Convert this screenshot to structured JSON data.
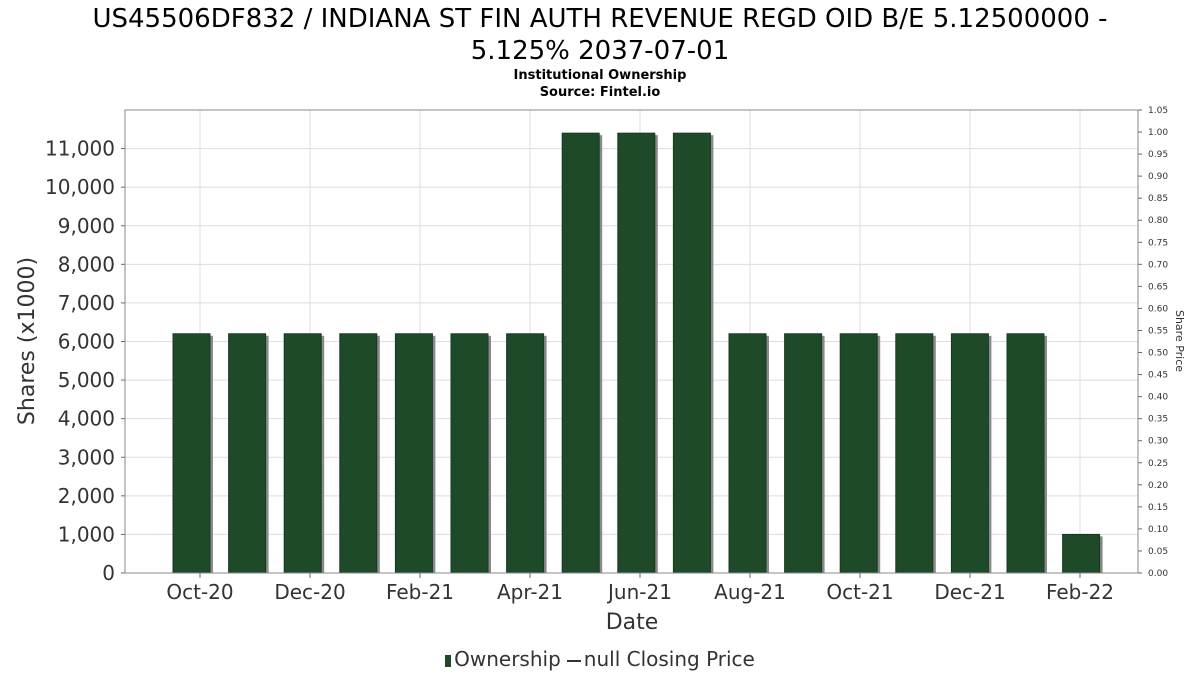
{
  "header": {
    "title_line1": "US45506DF832 / INDIANA ST FIN AUTH REVENUE REGD OID B/E 5.12500000 -",
    "title_line2": "5.125% 2037-07-01",
    "subtitle": "Institutional Ownership",
    "source": "Source: Fintel.io"
  },
  "legend": {
    "ownership": "Ownership",
    "closing_price": "null Closing Price"
  },
  "colors": {
    "bar": "#1f4a2a",
    "bar_shadow": "#8a8a8a",
    "grid": "#dddddd"
  },
  "chart_data": {
    "type": "bar",
    "xlabel": "Date",
    "ylabel": "Shares (x1000)",
    "y2label": "Share Price",
    "ylim": [
      0,
      12000
    ],
    "y2lim": [
      0,
      1.05
    ],
    "yticks": [
      "0",
      "1,000",
      "2,000",
      "3,000",
      "4,000",
      "5,000",
      "6,000",
      "7,000",
      "8,000",
      "9,000",
      "10,000",
      "11,000"
    ],
    "y2ticks": [
      "0.00",
      "0.05",
      "0.10",
      "0.15",
      "0.20",
      "0.25",
      "0.30",
      "0.35",
      "0.40",
      "0.45",
      "0.50",
      "0.55",
      "0.60",
      "0.65",
      "0.70",
      "0.75",
      "0.80",
      "0.85",
      "0.90",
      "0.95",
      "1.00",
      "1.05"
    ],
    "xticks": [
      "Oct-20",
      "Dec-20",
      "Feb-21",
      "Apr-21",
      "Jun-21",
      "Aug-21",
      "Oct-21",
      "Dec-21",
      "Feb-22"
    ],
    "grid": true,
    "legend_position": "bottom",
    "series": [
      {
        "name": "Ownership",
        "values": [
          6200,
          6200,
          6200,
          6200,
          6200,
          6200,
          6200,
          11400,
          11400,
          11400,
          6200,
          6200,
          6200,
          6200,
          6200,
          6200,
          1000
        ]
      }
    ]
  }
}
